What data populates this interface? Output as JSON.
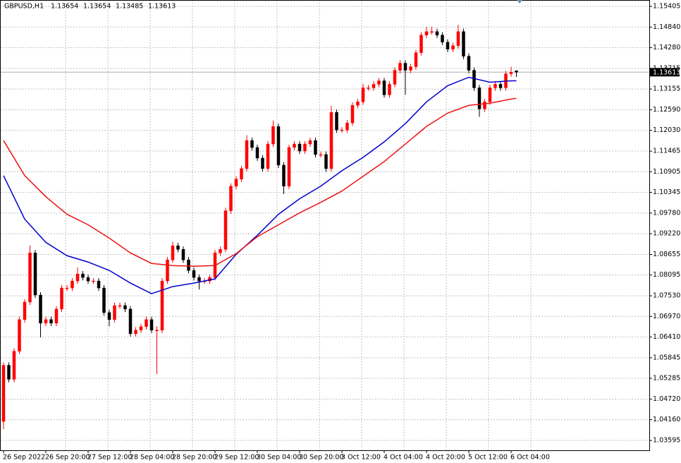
{
  "chart_data": {
    "type": "candlestick",
    "symbol": "GBPUSD,H1",
    "header_values": [
      1.13654,
      1.13654,
      1.13485,
      1.13613
    ],
    "categories": [
      "26 Sep 2022",
      null,
      null,
      null,
      null,
      null,
      null,
      null,
      "26 Sep 20:00",
      null,
      null,
      null,
      null,
      null,
      null,
      null,
      "27 Sep 12:00",
      null,
      null,
      null,
      null,
      null,
      null,
      null,
      "28 Sep 04:00",
      null,
      null,
      null,
      null,
      null,
      null,
      null,
      "28 Sep 20:00",
      null,
      null,
      null,
      null,
      null,
      null,
      null,
      "29 Sep 12:00",
      null,
      null,
      null,
      null,
      null,
      null,
      null,
      "30 Sep 04:00",
      null,
      null,
      null,
      null,
      null,
      null,
      null,
      "30 Sep 20:00",
      null,
      null,
      null,
      null,
      null,
      null,
      null,
      "3 Oct 12:00",
      null,
      null,
      null,
      null,
      null,
      null,
      null,
      "4 Oct 04:00",
      null,
      null,
      null,
      null,
      null,
      null,
      null,
      "4 Oct 20:00",
      null,
      null,
      null,
      null,
      null,
      null,
      null,
      "5 Oct 12:00",
      null,
      null,
      null,
      null,
      null,
      null,
      null,
      "6 Oct 04:00",
      null
    ],
    "open": [
      1.04111,
      1.0564,
      1.05258,
      1.06022,
      1.06882,
      1.0736,
      1.08697,
      1.07551,
      1.06786,
      1.06882,
      1.06786,
      1.07169,
      1.07742,
      1.07742,
      1.07933,
      1.08124,
      1.08029,
      1.07933,
      1.07933,
      1.07742,
      1.07073,
      1.06882,
      1.07264,
      1.07264,
      1.07169,
      1.065,
      1.06595,
      1.06691,
      1.06882,
      1.06595,
      1.06595,
      1.07933,
      1.08506,
      1.08889,
      1.08793,
      1.08506,
      1.0822,
      1.08029,
      1.07933,
      1.07933,
      1.08029,
      1.08697,
      1.08793,
      1.09844,
      1.10513,
      1.10704,
      1.10991,
      1.11755,
      1.11564,
      1.11277,
      1.10991,
      1.11659,
      1.12137,
      1.11086,
      1.10513,
      1.11564,
      1.11659,
      1.11468,
      1.11659,
      1.11755,
      1.11373,
      1.11373,
      1.10991,
      1.12519,
      1.12042,
      1.12042,
      1.12233,
      1.12711,
      1.12806,
      1.13188,
      1.13188,
      1.13284,
      1.13379,
      1.12997,
      1.13284,
      1.13666,
      1.13857,
      1.13666,
      1.13762,
      1.14144,
      1.14622,
      1.14717,
      1.14717,
      1.14622,
      1.1443,
      1.14239,
      1.14335,
      1.14717,
      1.14048,
      1.13666,
      1.13188,
      1.12615,
      1.12806,
      1.13188,
      1.13284,
      1.13188,
      1.1357,
      1.13654
    ],
    "high": [
      1.0572,
      1.0572,
      1.06102,
      1.06962,
      1.0744,
      1.089,
      1.08777,
      1.07631,
      1.06962,
      1.06962,
      1.07249,
      1.07822,
      1.07822,
      1.08013,
      1.083,
      1.08204,
      1.08109,
      1.08013,
      1.08013,
      1.07822,
      1.07153,
      1.07344,
      1.07344,
      1.07344,
      1.07249,
      1.06675,
      1.06771,
      1.06962,
      1.06962,
      1.067,
      1.08013,
      1.08586,
      1.09,
      1.08969,
      1.08873,
      1.08586,
      1.083,
      1.08109,
      1.08013,
      1.08109,
      1.08777,
      1.08873,
      1.09924,
      1.10593,
      1.10784,
      1.11071,
      1.119,
      1.11835,
      1.11644,
      1.11357,
      1.11739,
      1.123,
      1.12217,
      1.11166,
      1.11644,
      1.11739,
      1.11739,
      1.11739,
      1.11835,
      1.11835,
      1.11453,
      1.11453,
      1.127,
      1.12599,
      1.12122,
      1.12313,
      1.12791,
      1.12886,
      1.133,
      1.13268,
      1.13364,
      1.13459,
      1.13459,
      1.13364,
      1.13746,
      1.13937,
      1.13937,
      1.13842,
      1.14224,
      1.14702,
      1.1485,
      1.1485,
      1.14797,
      1.14702,
      1.1451,
      1.14415,
      1.149,
      1.14797,
      1.14128,
      1.13746,
      1.13268,
      1.12886,
      1.13268,
      1.13364,
      1.13364,
      1.1365,
      1.1376,
      1.13654
    ],
    "low": [
      1.039,
      1.05178,
      1.05178,
      1.05942,
      1.06802,
      1.0728,
      1.07471,
      1.064,
      1.06706,
      1.06706,
      1.06706,
      1.07089,
      1.07662,
      1.07662,
      1.07853,
      1.07949,
      1.07853,
      1.07853,
      1.07662,
      1.06993,
      1.067,
      1.06802,
      1.07184,
      1.07089,
      1.0642,
      1.0642,
      1.06515,
      1.06611,
      1.06515,
      1.054,
      1.06515,
      1.07853,
      1.08426,
      1.08713,
      1.08426,
      1.0814,
      1.07949,
      1.077,
      1.07853,
      1.07853,
      1.07949,
      1.08617,
      1.08713,
      1.09764,
      1.10433,
      1.10624,
      1.10911,
      1.11484,
      1.11197,
      1.10911,
      1.10911,
      1.11579,
      1.11006,
      1.103,
      1.10433,
      1.11484,
      1.11388,
      1.11388,
      1.11579,
      1.11293,
      1.11293,
      1.109,
      1.10911,
      1.11962,
      1.11962,
      1.11962,
      1.12153,
      1.12631,
      1.12726,
      1.13108,
      1.13108,
      1.13204,
      1.12917,
      1.12917,
      1.13204,
      1.13586,
      1.13,
      1.13586,
      1.13682,
      1.14064,
      1.14542,
      1.14637,
      1.14542,
      1.1435,
      1.14159,
      1.14159,
      1.14255,
      1.13968,
      1.13586,
      1.13108,
      1.124,
      1.12535,
      1.12726,
      1.13108,
      1.13108,
      1.13108,
      1.1349,
      1.13485
    ],
    "close": [
      1.0564,
      1.05258,
      1.06022,
      1.06882,
      1.0736,
      1.08697,
      1.07551,
      1.06786,
      1.06882,
      1.06786,
      1.07169,
      1.07742,
      1.07742,
      1.07933,
      1.08124,
      1.08029,
      1.07933,
      1.07933,
      1.07742,
      1.07073,
      1.06882,
      1.07264,
      1.07264,
      1.07169,
      1.065,
      1.06595,
      1.06691,
      1.06882,
      1.06595,
      1.06595,
      1.07933,
      1.08506,
      1.08889,
      1.08793,
      1.08506,
      1.0822,
      1.08029,
      1.07933,
      1.07933,
      1.08029,
      1.08697,
      1.08793,
      1.09844,
      1.10513,
      1.10704,
      1.10991,
      1.11755,
      1.11564,
      1.11277,
      1.10991,
      1.11659,
      1.12137,
      1.11086,
      1.10513,
      1.11564,
      1.11659,
      1.11468,
      1.11659,
      1.11755,
      1.11373,
      1.11373,
      1.10991,
      1.12519,
      1.12042,
      1.12042,
      1.12233,
      1.12711,
      1.12806,
      1.13188,
      1.13188,
      1.13284,
      1.13379,
      1.12997,
      1.13284,
      1.13666,
      1.13857,
      1.13666,
      1.13762,
      1.14144,
      1.14622,
      1.14717,
      1.14717,
      1.14622,
      1.1443,
      1.14239,
      1.14335,
      1.14717,
      1.14048,
      1.13666,
      1.13188,
      1.12615,
      1.12806,
      1.13188,
      1.13284,
      1.13188,
      1.1357,
      1.13609,
      1.13613
    ],
    "up_color": "#ff0000",
    "down_color": "#000000",
    "lines": [
      {
        "color": "#0000cc",
        "x": [
          0,
          4,
          8,
          12,
          16,
          20,
          24,
          28,
          32,
          36,
          40,
          44,
          48,
          52,
          56,
          60,
          64,
          68,
          72,
          76,
          80,
          84,
          88,
          92,
          96,
          97
        ],
        "values": [
          1.108,
          1.09615,
          1.08984,
          1.08621,
          1.08449,
          1.0822,
          1.07876,
          1.07589,
          1.0778,
          1.07876,
          1.0799,
          1.08659,
          1.09175,
          1.09748,
          1.10169,
          1.10513,
          1.10933,
          1.11296,
          1.11717,
          1.12214,
          1.12806,
          1.13246,
          1.13475,
          1.13341,
          1.13379,
          1.13379
        ]
      },
      {
        "color": "#ee1111",
        "x": [
          0,
          4,
          8,
          12,
          16,
          20,
          24,
          28,
          32,
          36,
          40,
          44,
          48,
          52,
          56,
          60,
          64,
          68,
          72,
          76,
          80,
          84,
          88,
          92,
          96,
          97
        ],
        "values": [
          1.11755,
          1.108,
          1.10226,
          1.09748,
          1.09462,
          1.09099,
          1.08697,
          1.08411,
          1.08353,
          1.08334,
          1.08353,
          1.08678,
          1.09137,
          1.09462,
          1.09787,
          1.10073,
          1.10379,
          1.1078,
          1.11182,
          1.11659,
          1.12137,
          1.125,
          1.12711,
          1.12768,
          1.12882,
          1.12902
        ]
      }
    ],
    "current_price": 1.13613,
    "ylim": [
      1.03327,
      1.15577
    ],
    "yticks": [
      {
        "value": 1.15405,
        "label": "1.15405"
      },
      {
        "value": 1.1484,
        "label": "1.14840"
      },
      {
        "value": 1.1428,
        "label": "1.14280"
      },
      {
        "value": 1.13715,
        "label": "1.13715"
      },
      {
        "value": 1.13155,
        "label": "1.13155"
      },
      {
        "value": 1.1259,
        "label": "1.12590"
      },
      {
        "value": 1.1203,
        "label": "1.12030"
      },
      {
        "value": 1.11465,
        "label": "1.11465"
      },
      {
        "value": 1.10905,
        "label": "1.10905"
      },
      {
        "value": 1.10345,
        "label": "1.10345"
      },
      {
        "value": 1.0978,
        "label": "1.09780"
      },
      {
        "value": 1.0922,
        "label": "1.09220"
      },
      {
        "value": 1.08655,
        "label": "1.08655"
      },
      {
        "value": 1.08095,
        "label": "1.08095"
      },
      {
        "value": 1.0753,
        "label": "1.07530"
      },
      {
        "value": 1.0697,
        "label": "1.06970"
      },
      {
        "value": 1.0641,
        "label": "1.06410"
      },
      {
        "value": 1.05845,
        "label": "1.05845"
      },
      {
        "value": 1.05285,
        "label": "1.05285"
      },
      {
        "value": 1.0472,
        "label": "1.04720"
      },
      {
        "value": 1.0416,
        "label": "1.04160"
      },
      {
        "value": 1.03595,
        "label": "1.03595"
      }
    ],
    "grid": true
  }
}
